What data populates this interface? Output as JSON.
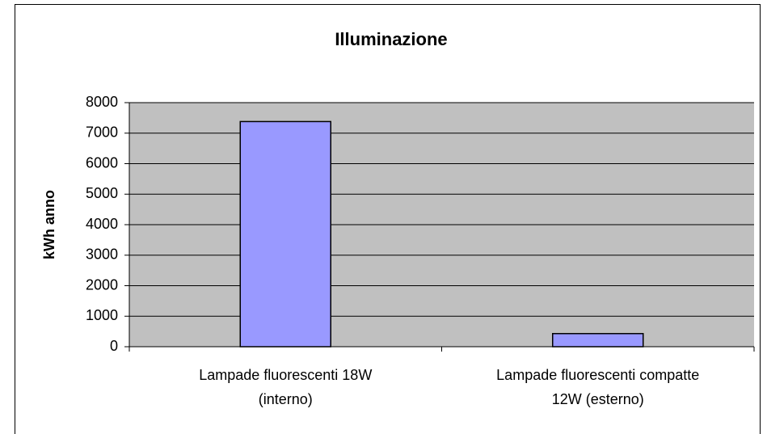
{
  "chart_data": {
    "type": "bar",
    "title": "Illuminazione",
    "y_label": "kWh anno",
    "categories": [
      "Lampade fluorescenti 18W (interno)",
      "Lampade fluorescenti compatte 12W (esterno)"
    ],
    "values": [
      7380,
      430
    ],
    "color": "#9999ff",
    "ylim": [
      0,
      8000
    ],
    "yticks": [
      0,
      1000,
      2000,
      3000,
      4000,
      5000,
      6000,
      7000,
      8000
    ],
    "grid": true
  }
}
